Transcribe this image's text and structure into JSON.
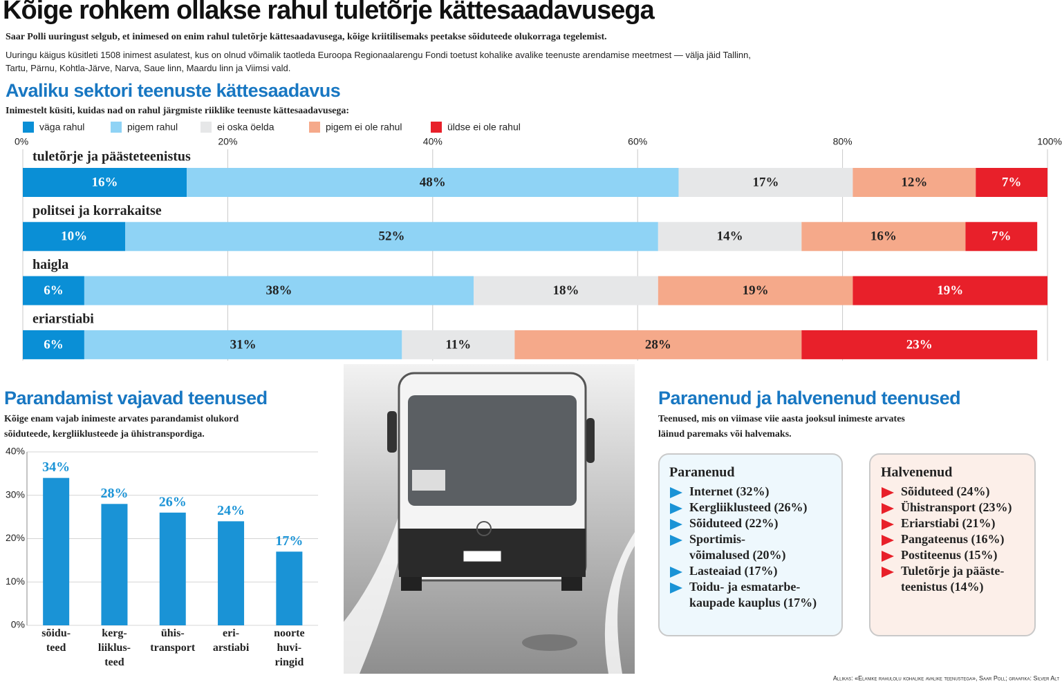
{
  "header": {
    "title": "Kõige rohkem ollakse rahul tuletõrje kättesaadavusega",
    "lead": "Saar Polli uuringust selgub, et inimesed on enim rahul tuletõrje kättesaadavusega, kõige kriitilisemaks peetakse sõiduteede olukorraga tegelemist.",
    "note": "Uuringu käigus küsitleti 1508 inimest asulatest, kus on olnud võimalik taotleda Euroopa Regionaalarengu Fondi toetust kohalike avalike teenuste arendamise meetmest — välja jäid Tallinn, Tartu, Pärnu, Kohtla-Järve, Narva, Saue linn, Maardu linn ja Viimsi vald."
  },
  "chart_data": [
    {
      "type": "stacked_hbar",
      "title": "Avaliku sektori teenuste kättesaadavus",
      "subtitle": "Inimestelt küsiti, kuidas nad on rahul järgmiste riiklike teenuste kättesaadavusega:",
      "categories": [
        "tuletõrje ja päästeteenistus",
        "politsei ja korrakaitse",
        "haigla",
        "eriarstiabi"
      ],
      "xlim": [
        0,
        100
      ],
      "xticks": [
        {
          "value": 0,
          "label": "0%"
        },
        {
          "value": 20,
          "label": "20%"
        },
        {
          "value": 40,
          "label": "40%"
        },
        {
          "value": 60,
          "label": "60%"
        },
        {
          "value": 80,
          "label": "80%"
        },
        {
          "value": 100,
          "label": "100%"
        }
      ],
      "grid": true,
      "legend": "top",
      "series": [
        {
          "name": "väga rahul",
          "color": "#0a8fd6",
          "values": [
            16,
            10,
            6,
            6
          ],
          "value_labels": [
            "16%",
            "10%",
            "6%",
            "6%"
          ]
        },
        {
          "name": "pigem rahul",
          "color": "#8fd3f5",
          "values": [
            48,
            52,
            38,
            31
          ],
          "value_labels": [
            "48%",
            "52%",
            "38%",
            "31%"
          ]
        },
        {
          "name": "ei oska öelda",
          "color": "#e6e7e8",
          "values": [
            17,
            14,
            18,
            11
          ],
          "value_labels": [
            "17%",
            "14%",
            "18%",
            "11%"
          ]
        },
        {
          "name": "pigem ei ole rahul",
          "color": "#f5a98a",
          "values": [
            12,
            16,
            19,
            28
          ],
          "value_labels": [
            "12%",
            "16%",
            "19%",
            "28%"
          ]
        },
        {
          "name": "üldse ei ole rahul",
          "color": "#e8202a",
          "values": [
            7,
            7,
            19,
            23
          ],
          "value_labels": [
            "7%",
            "7%",
            "19%",
            "23%"
          ]
        }
      ]
    },
    {
      "type": "bar",
      "title": "Parandamist vajavad teenused",
      "subtitle": "Kõige enam vajab inimeste arvates parandamist olukord\nsõiduteede, kergliiklusteede ja ühistranspordiga.",
      "categories": [
        "sõidu-\nteed",
        "kerg-\nliiklus-\nteed",
        "ühis-\ntransport",
        "eri-\narstiabi",
        "noorte\nhuvi-\nringid"
      ],
      "values": [
        34,
        28,
        26,
        24,
        17
      ],
      "value_labels": [
        "34%",
        "28%",
        "26%",
        "24%",
        "17%"
      ],
      "color": "#1a93d6",
      "ylim": [
        0,
        40
      ],
      "yticks": [
        {
          "value": 0,
          "label": "0%"
        },
        {
          "value": 10,
          "label": "10%"
        },
        {
          "value": 20,
          "label": "20%"
        },
        {
          "value": 30,
          "label": "30%"
        },
        {
          "value": 40,
          "label": "40%"
        }
      ],
      "grid": true
    }
  ],
  "changes": {
    "title": "Paranenud ja halvenenud teenused",
    "subtitle": "Teenused, mis on viimase viie aasta jooksul inimeste arvates\nläinud paremaks või halvemaks.",
    "improved": {
      "title": "Paranenud",
      "items": [
        "Internet (32%)",
        "Kergliiklusteed (26%)",
        "Sõiduteed (22%)",
        "Sportimis-\nvõimalused (20%)",
        "Lasteaiad (17%)",
        "Toidu- ja esmatarbe-\nkaupade kauplus (17%)"
      ]
    },
    "worsened": {
      "title": "Halvenenud",
      "items": [
        "Sõiduteed (24%)",
        "Ühistransport (23%)",
        "Eriarstiabi (21%)",
        "Pangateenus (16%)",
        "Postiteenus (15%)",
        "Tuletõrje ja pääste-\nteenistus (14%)"
      ]
    }
  },
  "source": "Allikas: «Elanike rahulolu kohalike avalike teenustega», Saar Poll; graafika: Silver Alt"
}
